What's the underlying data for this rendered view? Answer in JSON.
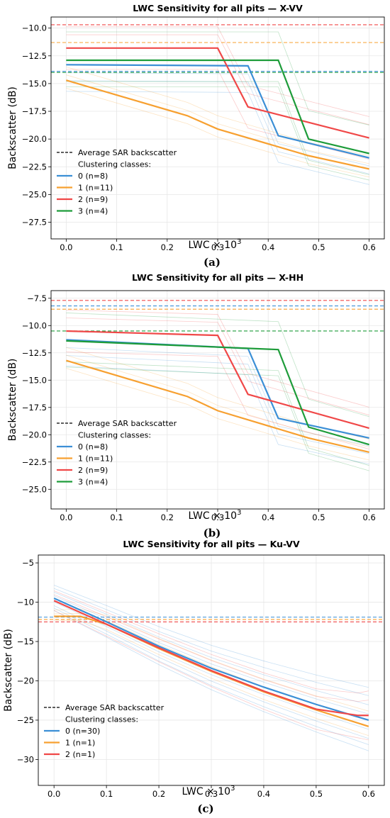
{
  "chart_data": [
    {
      "type": "line",
      "title": "LWC Sensitivity for all pits — X-VV",
      "xlabel": "LWC × 10",
      "xlabel_sup": "3",
      "ylabel": "Backscatter (dB)",
      "xlim": [
        -0.03,
        0.63
      ],
      "ylim": [
        -29.0,
        -9.0
      ],
      "xticks": [
        0.0,
        0.1,
        0.2,
        0.3,
        0.4,
        0.5,
        0.6
      ],
      "xtick_labels": [
        "0.0",
        "0.1",
        "0.2",
        "0.3",
        "0.4",
        "0.5",
        "0.6"
      ],
      "yticks": [
        -10.0,
        -12.5,
        -15.0,
        -17.5,
        -20.0,
        -22.5,
        -25.0,
        -27.5
      ],
      "ytick_labels": [
        "−10.0",
        "−12.5",
        "−15.0",
        "−17.5",
        "−20.0",
        "−22.5",
        "−25.0",
        "−27.5"
      ],
      "grid": true,
      "legend_position": "bottom-left",
      "legend_avg_label": "Average SAR backscatter",
      "legend_header": "Clustering classes:",
      "colors": [
        "#3b8fd6",
        "#f7a030",
        "#f04848",
        "#1e9c3a"
      ],
      "series": [
        {
          "name": "0 (n=8)",
          "x": [
            0.0,
            0.36,
            0.42,
            0.6
          ],
          "y": [
            -13.3,
            -13.4,
            -19.7,
            -21.7
          ]
        },
        {
          "name": "1 (n=11)",
          "x": [
            0.0,
            0.24,
            0.3,
            0.48,
            0.6
          ],
          "y": [
            -14.7,
            -17.9,
            -19.1,
            -21.5,
            -22.7
          ]
        },
        {
          "name": "2 (n=9)",
          "x": [
            0.0,
            0.3,
            0.36,
            0.6
          ],
          "y": [
            -11.8,
            -11.8,
            -17.1,
            -19.9
          ]
        },
        {
          "name": "3 (n=4)",
          "x": [
            0.0,
            0.42,
            0.48,
            0.6
          ],
          "y": [
            -12.9,
            -12.9,
            -20.0,
            -21.3
          ]
        }
      ],
      "average_lines": [
        -13.9,
        -11.3,
        -9.7,
        -14.0
      ],
      "caption": "(a)"
    },
    {
      "type": "line",
      "title": "LWC Sensitivity for all pits — X-HH",
      "xlabel": "LWC × 10",
      "xlabel_sup": "3",
      "ylabel": "Backscatter (dB)",
      "xlim": [
        -0.03,
        0.63
      ],
      "ylim": [
        -26.8,
        -6.8
      ],
      "xticks": [
        0.0,
        0.1,
        0.2,
        0.3,
        0.4,
        0.5,
        0.6
      ],
      "xtick_labels": [
        "0.0",
        "0.1",
        "0.2",
        "0.3",
        "0.4",
        "0.5",
        "0.6"
      ],
      "yticks": [
        -7.5,
        -10.0,
        -12.5,
        -15.0,
        -17.5,
        -20.0,
        -22.5,
        -25.0
      ],
      "ytick_labels": [
        "−7.5",
        "−10.0",
        "−12.5",
        "−15.0",
        "−17.5",
        "−20.0",
        "−22.5",
        "−25.0"
      ],
      "grid": true,
      "legend_position": "bottom-left",
      "legend_avg_label": "Average SAR backscatter",
      "legend_header": "Clustering classes:",
      "colors": [
        "#3b8fd6",
        "#f7a030",
        "#f04848",
        "#1e9c3a"
      ],
      "series": [
        {
          "name": "0 (n=8)",
          "x": [
            0.0,
            0.36,
            0.42,
            0.6
          ],
          "y": [
            -11.3,
            -12.1,
            -18.5,
            -20.3
          ]
        },
        {
          "name": "1 (n=11)",
          "x": [
            0.0,
            0.24,
            0.3,
            0.48,
            0.6
          ],
          "y": [
            -13.2,
            -16.5,
            -17.8,
            -20.3,
            -21.6
          ]
        },
        {
          "name": "2 (n=9)",
          "x": [
            0.0,
            0.3,
            0.36,
            0.6
          ],
          "y": [
            -10.5,
            -10.9,
            -16.3,
            -19.4
          ]
        },
        {
          "name": "3 (n=4)",
          "x": [
            0.0,
            0.42,
            0.48,
            0.6
          ],
          "y": [
            -11.4,
            -12.2,
            -19.3,
            -20.9
          ]
        }
      ],
      "average_lines": [
        -8.2,
        -8.5,
        -7.7,
        -10.5
      ],
      "caption": "(b)"
    },
    {
      "type": "line",
      "title": "LWC Sensitivity for all pits — Ku-VV",
      "xlabel": "LWC × 10",
      "xlabel_sup": "3",
      "ylabel": "Backscatter (dB)",
      "xlim": [
        -0.03,
        0.63
      ],
      "ylim": [
        -33.3,
        -4.0
      ],
      "xticks": [
        0.0,
        0.1,
        0.2,
        0.3,
        0.4,
        0.5,
        0.6
      ],
      "xtick_labels": [
        "0.0",
        "0.1",
        "0.2",
        "0.3",
        "0.4",
        "0.5",
        "0.6"
      ],
      "yticks": [
        -5,
        -10,
        -15,
        -20,
        -25,
        -30
      ],
      "ytick_labels": [
        "−5",
        "−10",
        "−15",
        "−20",
        "−25",
        "−30"
      ],
      "grid": true,
      "legend_position": "bottom-left",
      "legend_avg_label": "Average SAR backscatter",
      "legend_header": "Clustering classes:",
      "colors": [
        "#3b8fd6",
        "#f7a030",
        "#f04848"
      ],
      "series": [
        {
          "name": "0 (n=30)",
          "x": [
            0.0,
            0.1,
            0.2,
            0.3,
            0.4,
            0.5,
            0.6
          ],
          "y": [
            -9.5,
            -12.5,
            -15.6,
            -18.4,
            -20.8,
            -23.0,
            -25.0
          ]
        },
        {
          "name": "1 (n=1)",
          "x": [
            0.0,
            0.05,
            0.1,
            0.2,
            0.3,
            0.4,
            0.5,
            0.6
          ],
          "y": [
            -11.8,
            -11.8,
            -12.8,
            -15.9,
            -18.8,
            -21.4,
            -23.7,
            -25.8
          ]
        },
        {
          "name": "2 (n=1)",
          "x": [
            0.0,
            0.1,
            0.2,
            0.3,
            0.4,
            0.5,
            0.58,
            0.6
          ],
          "y": [
            -9.8,
            -12.8,
            -15.8,
            -18.7,
            -21.3,
            -23.6,
            -24.4,
            -24.4
          ]
        }
      ],
      "average_lines": [
        -11.9,
        -12.2,
        -12.5
      ],
      "caption": "(c)"
    }
  ]
}
